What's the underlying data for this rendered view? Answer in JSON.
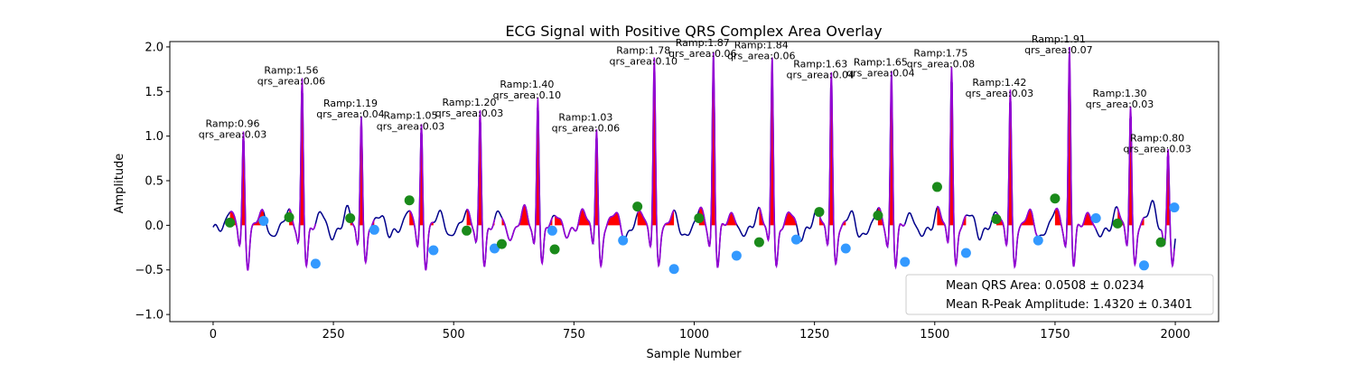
{
  "chart_data": {
    "type": "line",
    "title": "ECG Signal with Positive QRS Complex Area Overlay",
    "xlabel": "Sample Number",
    "ylabel": "Amplitude",
    "xlim": [
      -90,
      2090
    ],
    "ylim": [
      -1.08,
      2.06
    ],
    "xticks": [
      0,
      250,
      500,
      750,
      1000,
      1250,
      1500,
      1750,
      2000
    ],
    "yticks": [
      -1.0,
      -0.5,
      0.0,
      0.5,
      1.0,
      1.5,
      2.0
    ],
    "grid": false,
    "colors": {
      "signal": "#00008b",
      "qrs_segment": "#9400d3",
      "qrs_area": "#ff0000",
      "onset_marker": "#1a8a1a",
      "offset_marker": "#3399ff"
    },
    "beats": [
      {
        "onset": 35,
        "offset": 105,
        "r": 63,
        "r_amp": 0.96,
        "onset_y": 0.03,
        "offset_y": 0.05,
        "label_amp": "Ramp:0.96",
        "label_area": "qrs_area:0.03"
      },
      {
        "onset": 158,
        "offset": 213,
        "r": 185,
        "r_amp": 1.56,
        "onset_y": 0.09,
        "offset_y": -0.43,
        "label_amp": "Ramp:1.56",
        "label_area": "qrs_area:0.06"
      },
      {
        "onset": 285,
        "offset": 335,
        "r": 308,
        "r_amp": 1.19,
        "onset_y": 0.08,
        "offset_y": -0.05,
        "label_amp": "Ramp:1.19",
        "label_area": "qrs_area:0.04"
      },
      {
        "onset": 408,
        "offset": 458,
        "r": 433,
        "r_amp": 1.05,
        "onset_y": 0.28,
        "offset_y": -0.28,
        "label_amp": "Ramp:1.05",
        "label_area": "qrs_area:0.03"
      },
      {
        "onset": 527,
        "offset": 585,
        "r": 555,
        "r_amp": 1.2,
        "onset_y": -0.06,
        "offset_y": -0.26,
        "label_amp": "Ramp:1.20",
        "label_area": "qrs_area:0.03"
      },
      {
        "onset": 600,
        "offset": 705,
        "r": 675,
        "r_amp": 1.4,
        "onset_y": -0.21,
        "offset_y": -0.06,
        "label_amp": "Ramp:1.40",
        "label_area": "qrs_area:0.10"
      },
      {
        "onset": 710,
        "offset": 852,
        "r": 797,
        "r_amp": 1.03,
        "onset_y": -0.27,
        "offset_y": -0.17,
        "label_amp": "Ramp:1.03",
        "label_area": "qrs_area:0.06"
      },
      {
        "onset": 882,
        "offset": 958,
        "r": 917,
        "r_amp": 1.78,
        "onset_y": 0.21,
        "offset_y": -0.49,
        "label_amp": "Ramp:1.78",
        "label_area": "qrs_area:0.10"
      },
      {
        "onset": 1010,
        "offset": 1088,
        "r": 1040,
        "r_amp": 1.87,
        "onset_y": 0.08,
        "offset_y": -0.34,
        "label_amp": "Ramp:1.87",
        "label_area": "qrs_area:0.06"
      },
      {
        "onset": 1135,
        "offset": 1212,
        "r": 1162,
        "r_amp": 1.84,
        "onset_y": -0.19,
        "offset_y": -0.16,
        "label_amp": "Ramp:1.84",
        "label_area": "qrs_area:0.06"
      },
      {
        "onset": 1260,
        "offset": 1315,
        "r": 1285,
        "r_amp": 1.63,
        "onset_y": 0.15,
        "offset_y": -0.26,
        "label_amp": "Ramp:1.63",
        "label_area": "qrs_area:0.04"
      },
      {
        "onset": 1382,
        "offset": 1438,
        "r": 1410,
        "r_amp": 1.65,
        "onset_y": 0.11,
        "offset_y": -0.41,
        "label_amp": "Ramp:1.65",
        "label_area": "qrs_area:0.04"
      },
      {
        "onset": 1505,
        "offset": 1565,
        "r": 1535,
        "r_amp": 1.75,
        "onset_y": 0.43,
        "offset_y": -0.31,
        "label_amp": "Ramp:1.75",
        "label_area": "qrs_area:0.08"
      },
      {
        "onset": 1628,
        "offset": 1715,
        "r": 1657,
        "r_amp": 1.42,
        "onset_y": 0.07,
        "offset_y": -0.17,
        "label_amp": "Ramp:1.42",
        "label_area": "qrs_area:0.03"
      },
      {
        "onset": 1750,
        "offset": 1835,
        "r": 1780,
        "r_amp": 1.91,
        "onset_y": 0.3,
        "offset_y": 0.08,
        "label_amp": "Ramp:1.91",
        "label_area": "qrs_area:0.07"
      },
      {
        "onset": 1880,
        "offset": 1935,
        "r": 1907,
        "r_amp": 1.3,
        "onset_y": 0.02,
        "offset_y": -0.45,
        "label_amp": "Ramp:1.30",
        "label_area": "qrs_area:0.03"
      },
      {
        "onset": 1970,
        "offset": 1998,
        "r": 1985,
        "r_amp": 0.8,
        "onset_y": -0.19,
        "offset_y": 0.2,
        "label_amp": "Ramp:0.80",
        "label_area": "qrs_area:0.03"
      }
    ],
    "legend": {
      "placement": "lower right",
      "entries": [
        "Mean QRS Area: 0.0508 ± 0.0234",
        "Mean R-Peak Amplitude: 1.4320 ± 0.3401"
      ]
    }
  }
}
